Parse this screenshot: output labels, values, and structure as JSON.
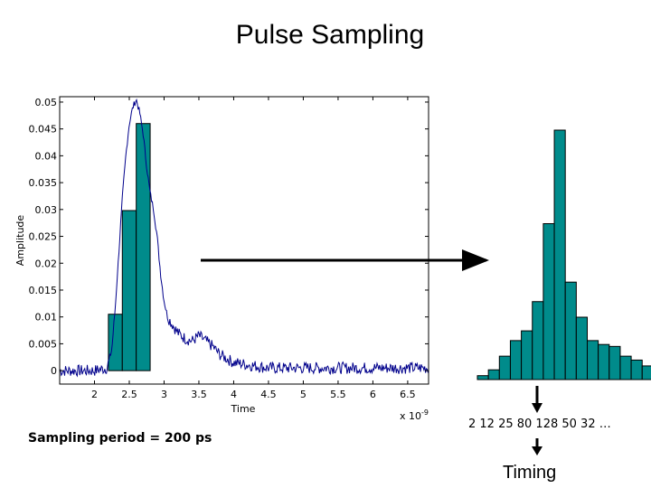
{
  "slide": {
    "title": "Pulse Sampling",
    "sampling_note": "Sampling period = 200 ps",
    "samples_sequence": "2 12 25 80 128 50 32 …",
    "timing_label": "Timing"
  },
  "colors": {
    "bar_fill": "#008B8B",
    "waveform": "#00008B",
    "arrow": "#000000"
  },
  "chart_data": [
    {
      "type": "line",
      "title": "",
      "xlabel": "Time",
      "ylabel": "Amplitude",
      "x_multiplier_label": "x 10",
      "x_multiplier_exponent": "-9",
      "xlim": [
        1.5,
        6.8
      ],
      "ylim": [
        -0.0025,
        0.051
      ],
      "xticks": [
        2,
        2.5,
        3,
        3.5,
        4,
        4.5,
        5,
        5.5,
        6,
        6.5
      ],
      "xtick_labels": [
        "2",
        "2.5",
        "3",
        "3.5",
        "4",
        "4.5",
        "5",
        "5.5",
        "6",
        "6.5"
      ],
      "yticks": [
        0,
        0.005,
        0.01,
        0.015,
        0.02,
        0.025,
        0.03,
        0.035,
        0.04,
        0.045,
        0.05
      ],
      "ytick_labels": [
        "0",
        "0.005",
        "0.01",
        "0.015",
        "0.02",
        "0.025",
        "0.03",
        "0.035",
        "0.04",
        "0.045",
        "0.05"
      ],
      "series": [
        {
          "name": "pulse waveform",
          "x": [
            1.5,
            2.0,
            2.18,
            2.25,
            2.3,
            2.35,
            2.4,
            2.45,
            2.5,
            2.55,
            2.6,
            2.65,
            2.7,
            2.75,
            2.8,
            2.85,
            2.9,
            2.95,
            3.0,
            3.05,
            3.1,
            3.2,
            3.3,
            3.4,
            3.5,
            3.6,
            3.7,
            3.8,
            4.0,
            4.5,
            5.0,
            5.5,
            6.0,
            6.5,
            6.8
          ],
          "values": [
            0.0,
            0.0,
            0.0005,
            0.004,
            0.012,
            0.022,
            0.032,
            0.04,
            0.046,
            0.049,
            0.0505,
            0.048,
            0.044,
            0.038,
            0.033,
            0.03,
            0.025,
            0.018,
            0.013,
            0.01,
            0.009,
            0.007,
            0.006,
            0.0055,
            0.0065,
            0.0055,
            0.0045,
            0.003,
            0.0015,
            0.0005,
            0.0005,
            0.0005,
            0.0005,
            0.0005,
            0.0005
          ]
        }
      ],
      "sample_bars": {
        "x_start": [
          2.2,
          2.4,
          2.6
        ],
        "values": [
          0.0105,
          0.0298,
          0.046
        ],
        "width": 0.2
      }
    },
    {
      "type": "bar",
      "title": "",
      "description_values_only": true,
      "values": [
        2,
        5,
        12,
        20,
        25,
        40,
        80,
        128,
        50,
        32,
        20,
        18,
        17,
        12,
        10,
        7,
        10
      ]
    }
  ]
}
